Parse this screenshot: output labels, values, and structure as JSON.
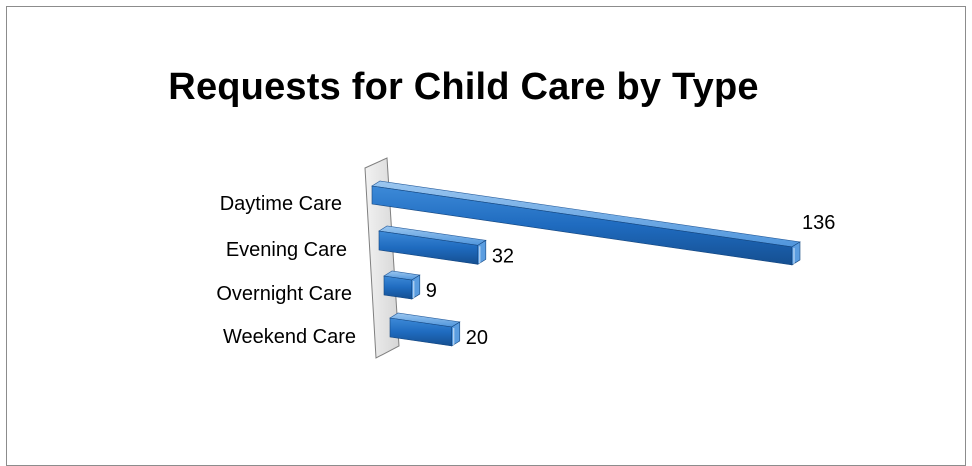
{
  "chart_data": {
    "type": "bar",
    "orientation": "horizontal",
    "style": "3d-perspective",
    "title": "Requests for Child Care by Type",
    "categories": [
      "Daytime Care",
      "Evening Care",
      "Overnight Care",
      "Weekend Care"
    ],
    "values": [
      136,
      32,
      9,
      20
    ],
    "data_labels": [
      "136",
      "32",
      "9",
      "20"
    ],
    "xlim": [
      0,
      136
    ],
    "grid": false,
    "legend": "none",
    "bar_color": "#1f6bbf"
  }
}
